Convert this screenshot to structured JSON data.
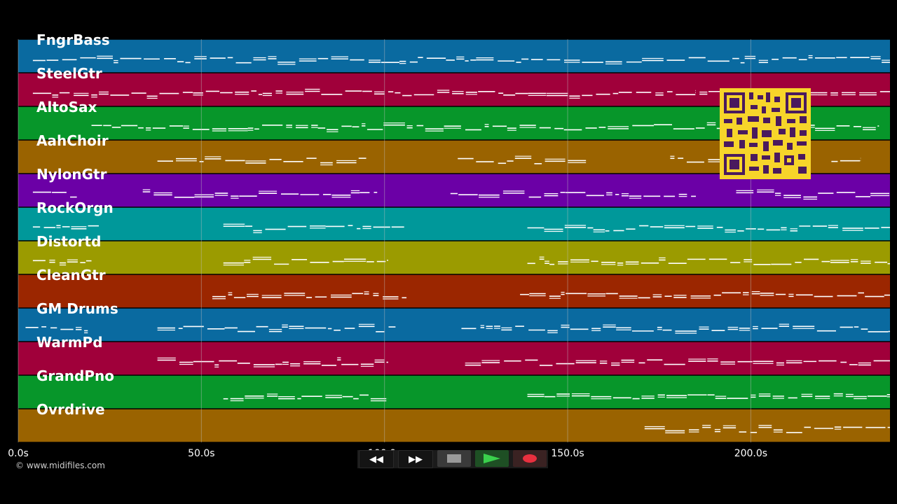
{
  "tracks": [
    {
      "name": "FngrBass",
      "color": "#0a6aa0"
    },
    {
      "name": "SteelGtr",
      "color": "#a0003a"
    },
    {
      "name": "AltoSax",
      "color": "#07962a"
    },
    {
      "name": "AahChoir",
      "color": "#9a6300"
    },
    {
      "name": "NylonGtr",
      "color": "#6b00a6"
    },
    {
      "name": "RockOrgn",
      "color": "#00989a"
    },
    {
      "name": "Distortd",
      "color": "#9b9b00"
    },
    {
      "name": "CleanGtr",
      "color": "#9b2600"
    },
    {
      "name": "GM Drums",
      "color": "#0a6aa0"
    },
    {
      "name": "WarmPd",
      "color": "#a0003a"
    },
    {
      "name": "GrandPno",
      "color": "#07962a"
    },
    {
      "name": "Ovrdrive",
      "color": "#9a6300"
    }
  ],
  "timeline": {
    "ticks": [
      {
        "time": 0,
        "label": "0.0s"
      },
      {
        "time": 50,
        "label": "50.0s"
      },
      {
        "time": 100,
        "label": "100.0s"
      },
      {
        "time": 150,
        "label": "150.0s"
      },
      {
        "time": 200,
        "label": "200.0s"
      }
    ],
    "max_seconds": 238
  },
  "transport": {
    "rewind_label": "◀◀",
    "forward_label": "▶▶",
    "stop": "stop-icon",
    "play": "play-icon",
    "record": "record-icon"
  },
  "copyright": "© www.midifiles.com",
  "qr_code": "qr-code",
  "note_color": "#ffffff",
  "grid_color": "#bfbfbf"
}
